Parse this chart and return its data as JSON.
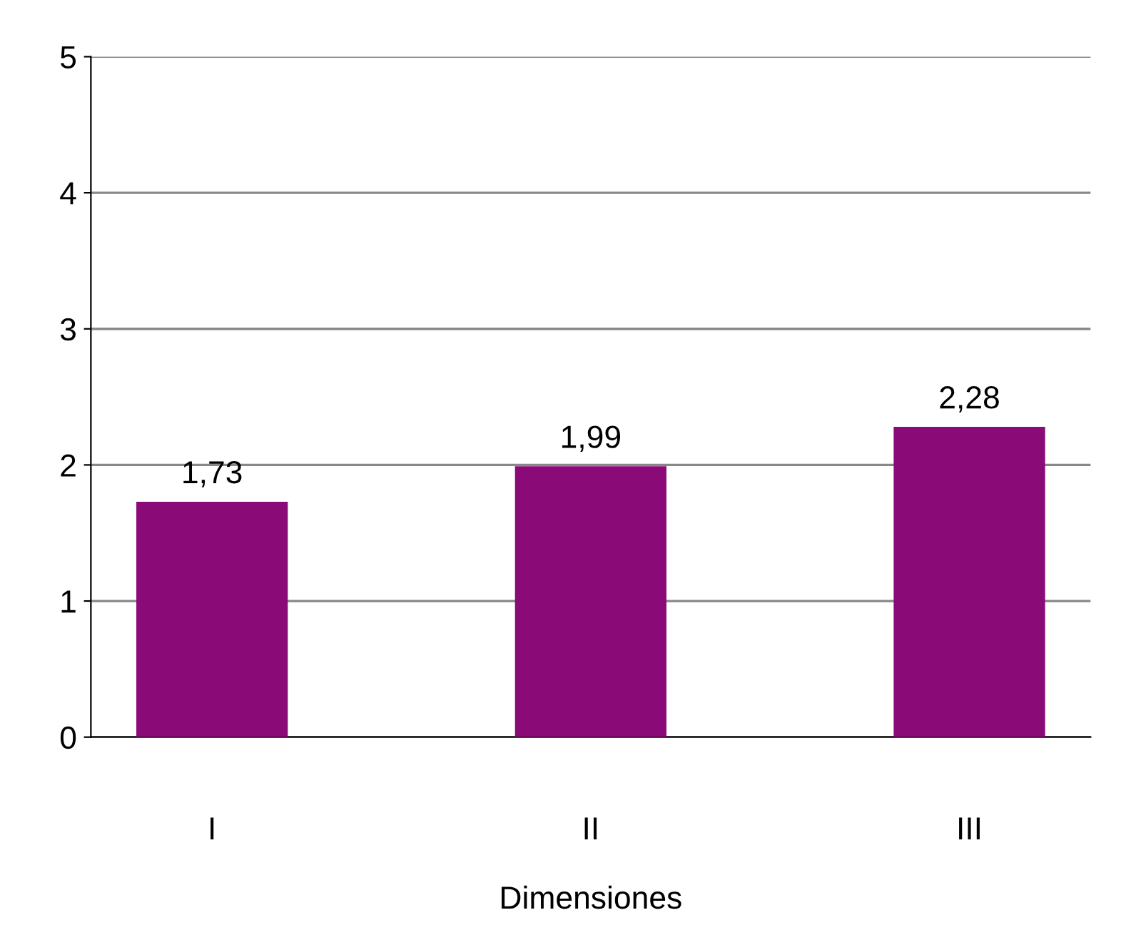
{
  "chart_data": {
    "type": "bar",
    "xlabel": "Dimensiones",
    "categories": [
      "I",
      "II",
      "III"
    ],
    "values": [
      1.73,
      1.99,
      2.28
    ],
    "value_labels": [
      "1,73",
      "1,99",
      "2,28"
    ],
    "color": "#8a0a78",
    "ylim": [
      0,
      5
    ],
    "yticks": [
      0,
      1,
      2,
      3,
      4,
      5
    ],
    "grid": "y"
  }
}
